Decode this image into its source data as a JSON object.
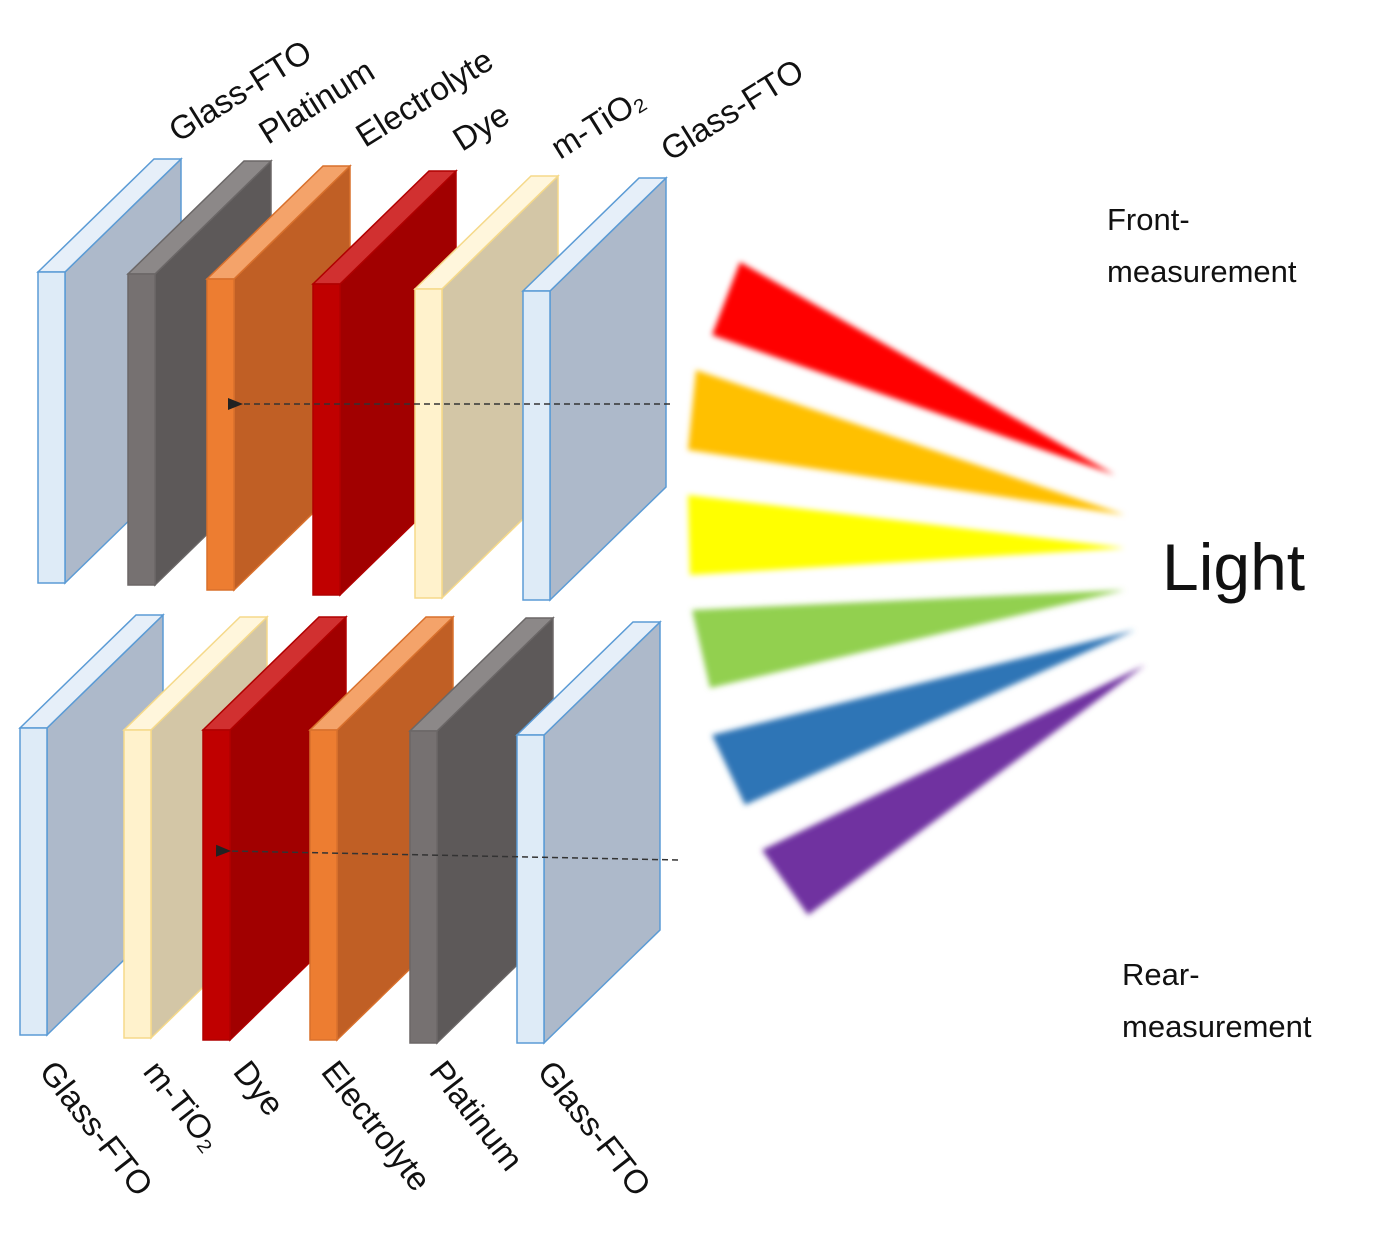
{
  "front_layers": [
    "Glass-FTO",
    "Platinum",
    "Electrolyte",
    "Dye",
    "m-TiO₂",
    "Glass-FTO"
  ],
  "rear_layers": [
    "Glass-FTO",
    "m-TiO₂",
    "Dye",
    "Electrolyte",
    "Platinum",
    "Glass-FTO"
  ],
  "front_label": [
    "Front-",
    "measurement"
  ],
  "rear_label": [
    "Rear-",
    "measurement"
  ],
  "light_label": "Light"
}
